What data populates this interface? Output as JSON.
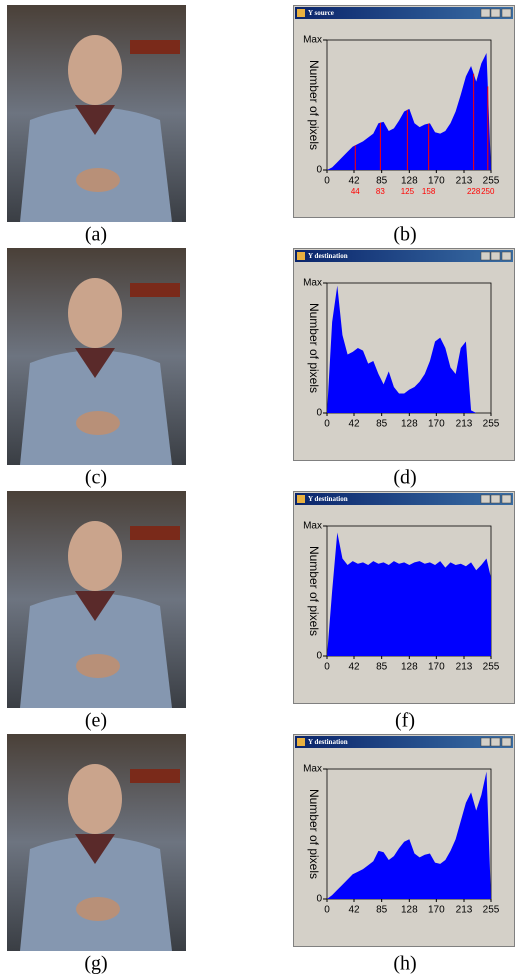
{
  "photos": [
    {
      "caption": "(a)"
    },
    {
      "caption": "(c)"
    },
    {
      "caption": "(e)"
    },
    {
      "caption": "(g)"
    }
  ],
  "chart_data": [
    {
      "type": "area",
      "window_title": "Y source",
      "y_label": "Number of pixels",
      "caption": "(b)",
      "color": "#0000ff",
      "x": [
        0,
        8,
        16,
        24,
        32,
        40,
        48,
        56,
        64,
        72,
        80,
        88,
        96,
        104,
        112,
        120,
        128,
        136,
        144,
        152,
        160,
        168,
        176,
        184,
        192,
        200,
        208,
        216,
        224,
        232,
        240,
        248,
        255
      ],
      "values": [
        0,
        0.02,
        0.06,
        0.1,
        0.14,
        0.18,
        0.2,
        0.22,
        0.25,
        0.28,
        0.36,
        0.37,
        0.3,
        0.32,
        0.38,
        0.45,
        0.47,
        0.36,
        0.33,
        0.35,
        0.36,
        0.29,
        0.28,
        0.3,
        0.36,
        0.45,
        0.58,
        0.72,
        0.8,
        0.68,
        0.82,
        0.9,
        0
      ],
      "xlim": [
        0,
        255
      ],
      "ylim": [
        0,
        1
      ],
      "xticks": [
        0,
        42,
        85,
        128,
        170,
        213,
        255
      ],
      "yticks": [
        0,
        {
          "value": 1,
          "label": "Max"
        }
      ],
      "markers": {
        "color": "#ff0000",
        "values": [
          44,
          83,
          125,
          158,
          228,
          250
        ]
      }
    },
    {
      "type": "area",
      "window_title": "Y destination",
      "y_label": "Number of pixels",
      "caption": "(d)",
      "color": "#0000ff",
      "x": [
        0,
        8,
        16,
        24,
        32,
        40,
        48,
        56,
        64,
        72,
        80,
        88,
        96,
        104,
        112,
        120,
        128,
        136,
        144,
        152,
        160,
        168,
        176,
        184,
        192,
        200,
        208,
        216,
        224,
        232,
        240,
        248,
        255
      ],
      "values": [
        0,
        0.7,
        0.98,
        0.6,
        0.45,
        0.47,
        0.5,
        0.48,
        0.38,
        0.4,
        0.3,
        0.22,
        0.32,
        0.2,
        0.15,
        0.15,
        0.18,
        0.2,
        0.24,
        0.3,
        0.4,
        0.55,
        0.58,
        0.5,
        0.35,
        0.3,
        0.5,
        0.55,
        0.02,
        0,
        0,
        0,
        0
      ],
      "xlim": [
        0,
        255
      ],
      "ylim": [
        0,
        1
      ],
      "xticks": [
        0,
        42,
        85,
        128,
        170,
        213,
        255
      ],
      "yticks": [
        0,
        {
          "value": 1,
          "label": "Max"
        }
      ]
    },
    {
      "type": "area",
      "window_title": "Y destination",
      "y_label": "Number of pixels",
      "caption": "(f)",
      "color": "#0000ff",
      "x": [
        0,
        8,
        16,
        24,
        32,
        40,
        48,
        56,
        64,
        72,
        80,
        88,
        96,
        104,
        112,
        120,
        128,
        136,
        144,
        152,
        160,
        168,
        176,
        184,
        192,
        200,
        208,
        216,
        224,
        232,
        240,
        248,
        255
      ],
      "values": [
        0,
        0.5,
        0.95,
        0.75,
        0.7,
        0.73,
        0.71,
        0.72,
        0.7,
        0.73,
        0.71,
        0.72,
        0.7,
        0.73,
        0.71,
        0.72,
        0.7,
        0.72,
        0.73,
        0.71,
        0.72,
        0.7,
        0.73,
        0.68,
        0.72,
        0.7,
        0.71,
        0.69,
        0.72,
        0.66,
        0.7,
        0.75,
        0.6
      ],
      "xlim": [
        0,
        255
      ],
      "ylim": [
        0,
        1
      ],
      "xticks": [
        0,
        42,
        85,
        128,
        170,
        213,
        255
      ],
      "yticks": [
        0,
        {
          "value": 1,
          "label": "Max"
        }
      ]
    },
    {
      "type": "area",
      "window_title": "Y destination",
      "y_label": "Number of pixels",
      "caption": "(h)",
      "color": "#0000ff",
      "x": [
        0,
        8,
        16,
        24,
        32,
        40,
        48,
        56,
        64,
        72,
        80,
        88,
        96,
        104,
        112,
        120,
        128,
        136,
        144,
        152,
        160,
        168,
        176,
        184,
        192,
        200,
        208,
        216,
        224,
        232,
        240,
        248,
        255
      ],
      "values": [
        0,
        0.03,
        0.07,
        0.11,
        0.15,
        0.19,
        0.21,
        0.23,
        0.26,
        0.29,
        0.37,
        0.36,
        0.3,
        0.33,
        0.39,
        0.44,
        0.46,
        0.35,
        0.32,
        0.34,
        0.35,
        0.28,
        0.27,
        0.3,
        0.37,
        0.46,
        0.6,
        0.74,
        0.82,
        0.68,
        0.8,
        0.98,
        0
      ],
      "xlim": [
        0,
        255
      ],
      "ylim": [
        0,
        1
      ],
      "xticks": [
        0,
        42,
        85,
        128,
        170,
        213,
        255
      ],
      "yticks": [
        0,
        {
          "value": 1,
          "label": "Max"
        }
      ]
    }
  ]
}
